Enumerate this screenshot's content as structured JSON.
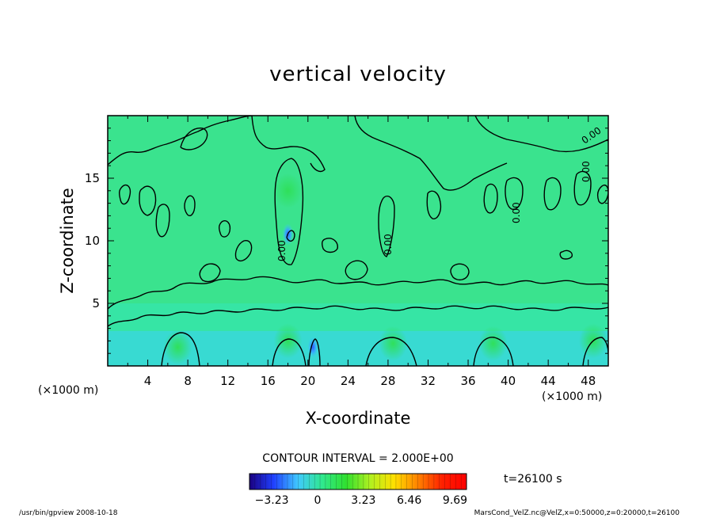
{
  "chart_data": {
    "type": "heatmap",
    "title": "vertical velocity",
    "xlabel": "X-coordinate",
    "ylabel": "Z-coordinate",
    "x_unit": "(×1000 m)",
    "y_unit": "(×1000 m)",
    "xlim": [
      0,
      50
    ],
    "ylim": [
      0,
      20
    ],
    "x_ticks": [
      "4",
      "8",
      "12",
      "16",
      "20",
      "24",
      "28",
      "32",
      "36",
      "40",
      "44",
      "48"
    ],
    "y_ticks": [
      "5",
      "10",
      "15"
    ],
    "contour_interval_text": "CONTOUR INTERVAL = 2.000E+00",
    "contour_labels": [
      "0.00",
      "0.00",
      "0.00",
      "0.00",
      "0.00"
    ],
    "colorbar": {
      "ticks": [
        "−3.23",
        "0",
        "3.23",
        "6.46",
        "9.69"
      ],
      "range": [
        -4.8,
        10.5
      ],
      "colors": [
        "#1a0080",
        "#2040ff",
        "#40c8ff",
        "#30e890",
        "#30e030",
        "#b0f020",
        "#ffe000",
        "#ff8000",
        "#ff2000",
        "#ff0000"
      ]
    },
    "time_label": "t=26100 s",
    "field_colors": {
      "background": "#3ae38e",
      "light": "#33e6b4",
      "cyan": "#38d7e8",
      "green_up": "#2fe05a",
      "blue_down": "#3060ff"
    },
    "features": [
      {
        "kind": "updraft",
        "x": 7,
        "z": 1.5
      },
      {
        "kind": "updraft",
        "x": 18,
        "z": 2.0
      },
      {
        "kind": "downdraft",
        "x": 20.5,
        "z": 1.5
      },
      {
        "kind": "updraft",
        "x": 28.5,
        "z": 1.8
      },
      {
        "kind": "updraft",
        "x": 38.5,
        "z": 1.8
      },
      {
        "kind": "updraft",
        "x": 48.5,
        "z": 2.0
      },
      {
        "kind": "updraft",
        "x": 18,
        "z": 14.0
      },
      {
        "kind": "downdraft",
        "x": 18,
        "z": 10.5
      }
    ]
  },
  "footer": {
    "left": "/usr/bin/gpview   2008-10-18",
    "right": "MarsCond_VelZ.nc@VelZ,x=0:50000,z=0:20000,t=26100"
  }
}
